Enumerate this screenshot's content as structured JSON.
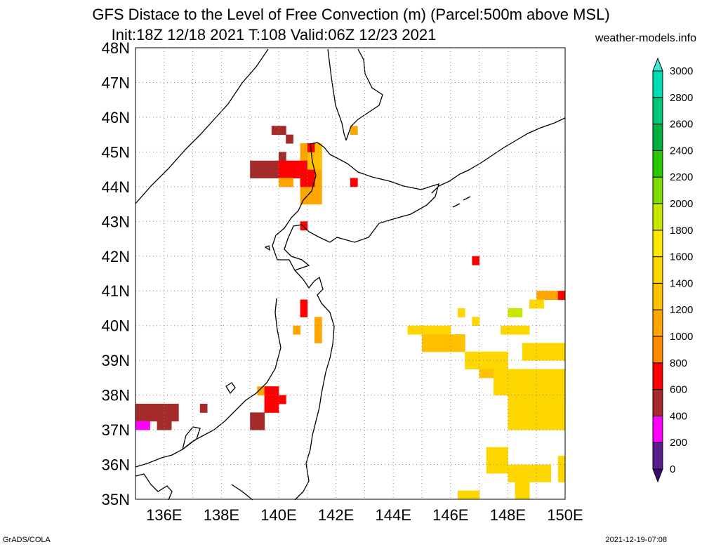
{
  "header": {
    "title_line1": "GFS Distace to the Level of Free Convection (m) (Parcel:500m above MSL)",
    "title_line2": "Init:18Z 12/18 2021 T:108 Valid:06Z 12/23 2021",
    "source": "weather-models.info"
  },
  "map": {
    "lon_range": [
      135,
      150
    ],
    "lat_range": [
      35,
      48
    ],
    "lon_labels": [
      "136E",
      "138E",
      "140E",
      "142E",
      "144E",
      "146E",
      "148E",
      "150E"
    ],
    "lat_labels": [
      "35N",
      "36N",
      "37N",
      "38N",
      "39N",
      "40N",
      "41N",
      "42N",
      "43N",
      "44N",
      "45N",
      "46N",
      "47N",
      "48N"
    ]
  },
  "legend": {
    "ticks": [
      "0",
      "200",
      "400",
      "600",
      "800",
      "1000",
      "1200",
      "1400",
      "1600",
      "1800",
      "2000",
      "2200",
      "2400",
      "2600",
      "2800",
      "3000"
    ],
    "colors": {
      "under": "#3a0a6e",
      "bins": [
        "#5a1f8c",
        "#ff00ff",
        "#a52a2a",
        "#ff0000",
        "#ff8c00",
        "#ffa500",
        "#ffc000",
        "#ffd700",
        "#ffe800",
        "#c8e600",
        "#7ddc00",
        "#28c800",
        "#00b040",
        "#00c878",
        "#00dcb4",
        "#00e6dc"
      ],
      "over": "#40e8d8"
    }
  },
  "footer": {
    "left": "GrADS/COLA",
    "right": "2021-12-19-07:08"
  }
}
